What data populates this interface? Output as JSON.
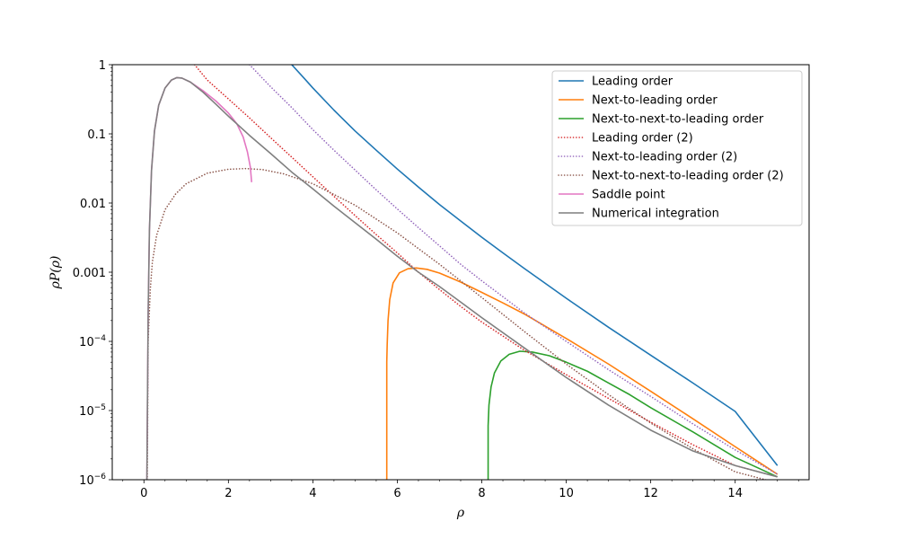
{
  "chart_data": {
    "type": "line",
    "title": "",
    "xlabel": "ρ",
    "ylabel": "ρP(ρ)",
    "y_scale": "log",
    "xlim": [
      -0.75,
      15.75
    ],
    "ylim": [
      1e-06,
      1
    ],
    "grid": false,
    "legend_position": "top-right",
    "x_ticks": [
      0,
      2,
      4,
      6,
      8,
      10,
      12,
      14
    ],
    "x_tick_labels": [
      "0",
      "2",
      "4",
      "6",
      "8",
      "10",
      "12",
      "14"
    ],
    "y_ticks": [
      1e-06,
      1e-05,
      0.0001,
      0.001,
      0.01,
      0.1,
      1
    ],
    "y_tick_labels": [
      {
        "base": "10",
        "exp": "−6"
      },
      {
        "base": "10",
        "exp": "−5"
      },
      {
        "base": "10",
        "exp": "−4"
      },
      {
        "text": "0.001"
      },
      {
        "text": "0.01"
      },
      {
        "text": "0.1"
      },
      {
        "text": "1"
      }
    ],
    "series": [
      {
        "name": "Leading order",
        "color": "#1f77b4",
        "style": "solid",
        "points": [
          [
            3.5,
            1.0
          ],
          [
            3.8,
            0.63
          ],
          [
            4.0,
            0.46
          ],
          [
            4.5,
            0.22
          ],
          [
            5.0,
            0.11
          ],
          [
            5.5,
            0.058
          ],
          [
            6.0,
            0.031
          ],
          [
            6.5,
            0.017
          ],
          [
            7.0,
            0.0095
          ],
          [
            7.5,
            0.0055
          ],
          [
            8.0,
            0.0032
          ],
          [
            8.5,
            0.0019
          ],
          [
            9.0,
            0.00114
          ],
          [
            10.0,
            0.00042
          ],
          [
            11.0,
            0.00016
          ],
          [
            12.0,
            6.3e-05
          ],
          [
            13.0,
            2.5e-05
          ],
          [
            14.0,
            9.7e-06
          ],
          [
            15.0,
            1.6e-06
          ]
        ]
      },
      {
        "name": "Next-to-leading order",
        "color": "#ff7f0e",
        "style": "solid",
        "points": [
          [
            5.75,
            1e-06
          ],
          [
            5.75,
            5e-05
          ],
          [
            5.76,
            9e-05
          ],
          [
            5.78,
            0.0002
          ],
          [
            5.82,
            0.0004
          ],
          [
            5.9,
            0.0007
          ],
          [
            6.05,
            0.00098
          ],
          [
            6.25,
            0.00112
          ],
          [
            6.45,
            0.00115
          ],
          [
            6.7,
            0.0011
          ],
          [
            7.0,
            0.00097
          ],
          [
            7.5,
            0.00072
          ],
          [
            8.0,
            0.00051
          ],
          [
            8.5,
            0.00036
          ],
          [
            9.0,
            0.00025
          ],
          [
            10.0,
            0.00011
          ],
          [
            11.0,
            4.7e-05
          ],
          [
            12.0,
            1.9e-05
          ],
          [
            13.0,
            7.6e-06
          ],
          [
            14.0,
            3e-06
          ],
          [
            15.0,
            1.2e-06
          ]
        ]
      },
      {
        "name": "Next-to-next-to-leading order",
        "color": "#2ca02c",
        "style": "solid",
        "points": [
          [
            8.15,
            1e-06
          ],
          [
            8.15,
            6e-06
          ],
          [
            8.17,
            1.2e-05
          ],
          [
            8.22,
            2.2e-05
          ],
          [
            8.3,
            3.5e-05
          ],
          [
            8.45,
            5.2e-05
          ],
          [
            8.65,
            6.5e-05
          ],
          [
            8.9,
            7.2e-05
          ],
          [
            9.2,
            7e-05
          ],
          [
            9.6,
            6.2e-05
          ],
          [
            10.0,
            5e-05
          ],
          [
            10.5,
            3.7e-05
          ],
          [
            11.0,
            2.5e-05
          ],
          [
            11.5,
            1.7e-05
          ],
          [
            12.0,
            1.1e-05
          ],
          [
            13.0,
            4.9e-06
          ],
          [
            14.0,
            2.1e-06
          ],
          [
            15.0,
            1.1e-06
          ]
        ]
      },
      {
        "name": "Leading order (2)",
        "color": "#d62728",
        "style": "dotted",
        "points": [
          [
            1.2,
            1.0
          ],
          [
            1.5,
            0.6
          ],
          [
            2.0,
            0.32
          ],
          [
            2.5,
            0.17
          ],
          [
            3.0,
            0.088
          ],
          [
            3.5,
            0.046
          ],
          [
            4.0,
            0.024
          ],
          [
            4.5,
            0.0125
          ],
          [
            5.0,
            0.0066
          ],
          [
            5.5,
            0.0035
          ],
          [
            6.0,
            0.0019
          ],
          [
            6.5,
            0.001
          ],
          [
            7.0,
            0.00056
          ],
          [
            7.5,
            0.00032
          ],
          [
            8.0,
            0.00019
          ],
          [
            9.0,
            7.5e-05
          ],
          [
            10.0,
            3.3e-05
          ],
          [
            11.0,
            1.5e-05
          ],
          [
            12.0,
            6.8e-06
          ],
          [
            13.0,
            3.2e-06
          ],
          [
            14.0,
            1.6e-06
          ],
          [
            15.0,
            1.1e-06
          ]
        ]
      },
      {
        "name": "Next-to-leading order (2)",
        "color": "#9467bd",
        "style": "dotted",
        "points": [
          [
            2.5,
            1.0
          ],
          [
            3.0,
            0.48
          ],
          [
            3.5,
            0.24
          ],
          [
            4.0,
            0.115
          ],
          [
            4.5,
            0.058
          ],
          [
            5.0,
            0.03
          ],
          [
            5.5,
            0.0155
          ],
          [
            6.0,
            0.0082
          ],
          [
            6.5,
            0.0044
          ],
          [
            7.0,
            0.0024
          ],
          [
            7.5,
            0.0013
          ],
          [
            8.0,
            0.00075
          ],
          [
            9.0,
            0.00026
          ],
          [
            10.0,
            0.0001
          ],
          [
            11.0,
            3.9e-05
          ],
          [
            12.0,
            1.6e-05
          ],
          [
            13.0,
            6.4e-06
          ],
          [
            14.0,
            2.7e-06
          ],
          [
            15.0,
            1.2e-06
          ]
        ]
      },
      {
        "name": "Next-to-next-to-leading order (2)",
        "color": "#8c564b",
        "style": "dotted",
        "points": [
          [
            0.08,
            1e-06
          ],
          [
            0.1,
            0.0001
          ],
          [
            0.15,
            0.00055
          ],
          [
            0.2,
            0.0014
          ],
          [
            0.3,
            0.0034
          ],
          [
            0.5,
            0.008
          ],
          [
            0.75,
            0.0135
          ],
          [
            1.0,
            0.019
          ],
          [
            1.5,
            0.027
          ],
          [
            2.0,
            0.0308
          ],
          [
            2.4,
            0.0315
          ],
          [
            2.8,
            0.0305
          ],
          [
            3.3,
            0.0265
          ],
          [
            4.0,
            0.019
          ],
          [
            5.0,
            0.0093
          ],
          [
            6.0,
            0.0037
          ],
          [
            7.0,
            0.0013
          ],
          [
            8.0,
            0.00043
          ],
          [
            9.0,
            0.00014
          ],
          [
            10.0,
            4.7e-05
          ],
          [
            11.0,
            1.7e-05
          ],
          [
            12.0,
            6.6e-06
          ],
          [
            13.0,
            2.8e-06
          ],
          [
            14.0,
            1.3e-06
          ],
          [
            15.0,
            9e-07
          ]
        ]
      },
      {
        "name": "Saddle point",
        "color": "#e377c2",
        "style": "solid",
        "points": [
          [
            0.07,
            1e-06
          ],
          [
            0.1,
            0.00025
          ],
          [
            0.13,
            0.004
          ],
          [
            0.18,
            0.03
          ],
          [
            0.25,
            0.11
          ],
          [
            0.35,
            0.26
          ],
          [
            0.5,
            0.46
          ],
          [
            0.65,
            0.6
          ],
          [
            0.78,
            0.65
          ],
          [
            0.9,
            0.64
          ],
          [
            1.1,
            0.56
          ],
          [
            1.4,
            0.42
          ],
          [
            1.7,
            0.3
          ],
          [
            2.0,
            0.2
          ],
          [
            2.2,
            0.14
          ],
          [
            2.35,
            0.09
          ],
          [
            2.45,
            0.055
          ],
          [
            2.52,
            0.033
          ],
          [
            2.55,
            0.02
          ]
        ]
      },
      {
        "name": "Numerical integration",
        "color": "#7f7f7f",
        "style": "solid",
        "points": [
          [
            0.07,
            1e-06
          ],
          [
            0.1,
            0.00025
          ],
          [
            0.13,
            0.004
          ],
          [
            0.18,
            0.03
          ],
          [
            0.25,
            0.11
          ],
          [
            0.35,
            0.26
          ],
          [
            0.5,
            0.46
          ],
          [
            0.65,
            0.6
          ],
          [
            0.78,
            0.65
          ],
          [
            0.9,
            0.64
          ],
          [
            1.1,
            0.56
          ],
          [
            1.4,
            0.4
          ],
          [
            1.7,
            0.27
          ],
          [
            2.0,
            0.18
          ],
          [
            2.5,
            0.095
          ],
          [
            3.0,
            0.052
          ],
          [
            3.5,
            0.028
          ],
          [
            4.0,
            0.016
          ],
          [
            4.5,
            0.009
          ],
          [
            5.0,
            0.0052
          ],
          [
            5.5,
            0.003
          ],
          [
            6.0,
            0.0017
          ],
          [
            6.5,
            0.001
          ],
          [
            7.0,
            0.00062
          ],
          [
            7.5,
            0.00037
          ],
          [
            8.0,
            0.00022
          ],
          [
            9.0,
            8.1e-05
          ],
          [
            10.0,
            3e-05
          ],
          [
            11.0,
            1.2e-05
          ],
          [
            12.0,
            5.2e-06
          ],
          [
            13.0,
            2.6e-06
          ],
          [
            14.0,
            1.6e-06
          ],
          [
            15.0,
            1.1e-06
          ]
        ]
      }
    ]
  }
}
